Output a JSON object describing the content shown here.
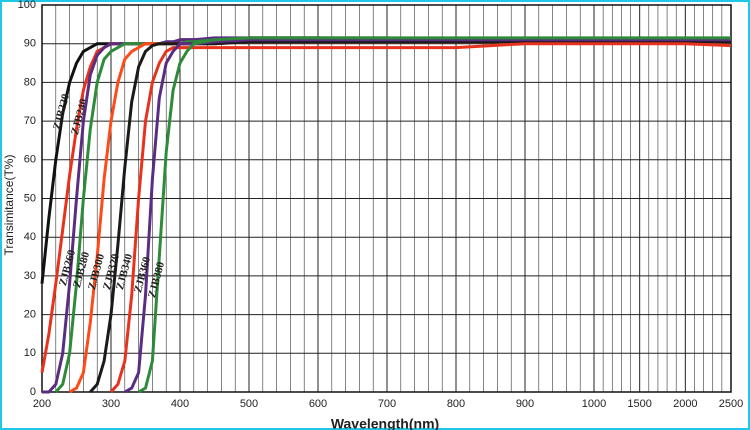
{
  "chart_data": {
    "type": "line",
    "x_label": "Wavelength(nm)",
    "y_label": "Transimitance(T%)",
    "x": [
      200,
      210,
      220,
      230,
      240,
      250,
      260,
      270,
      280,
      290,
      300,
      310,
      320,
      330,
      340,
      350,
      360,
      370,
      380,
      390,
      400,
      410,
      420,
      450,
      500,
      600,
      700,
      800,
      900,
      1000,
      1500,
      2000,
      2500
    ],
    "xticks": [
      200,
      300,
      400,
      500,
      600,
      700,
      800,
      900,
      1000,
      1500,
      2000,
      2500
    ],
    "xlim": [
      200,
      2500
    ],
    "ylim": [
      0,
      100
    ],
    "yticks": [
      0,
      10,
      20,
      30,
      40,
      50,
      60,
      70,
      80,
      90,
      100
    ],
    "grid": true,
    "series": [
      {
        "name": "ZJB220",
        "color": "#111111",
        "values": [
          28,
          45,
          60,
          72,
          80,
          85,
          88,
          89,
          90,
          90,
          90,
          90,
          90,
          90,
          90,
          90,
          90,
          90,
          90,
          90,
          91,
          91,
          91,
          91,
          91.5,
          91.5,
          91,
          91,
          91,
          91,
          91,
          91,
          91
        ]
      },
      {
        "name": "ZJB240",
        "color": "#e8321e",
        "values": [
          5,
          15,
          28,
          42,
          56,
          68,
          78,
          84,
          88,
          89,
          90,
          90,
          90,
          90,
          90,
          90,
          90,
          90,
          90,
          90,
          90,
          90,
          90,
          90.5,
          91,
          91,
          91,
          91,
          91,
          91,
          91,
          91,
          90.5
        ]
      },
      {
        "name": "ZJB260",
        "color": "#5a2d82",
        "values": [
          0,
          0,
          2,
          10,
          28,
          50,
          70,
          82,
          87,
          89,
          90,
          90,
          90,
          90,
          90,
          90,
          90,
          90,
          90.5,
          90.5,
          91,
          91,
          91,
          91.5,
          91.5,
          91.5,
          91.5,
          91,
          91,
          91,
          91.5,
          91,
          91
        ]
      },
      {
        "name": "ZJB280",
        "color": "#2e8b3a",
        "values": [
          null,
          null,
          0,
          2,
          10,
          28,
          50,
          68,
          80,
          86,
          88,
          89,
          90,
          90,
          90,
          90,
          90,
          90,
          90,
          90,
          90,
          90.5,
          90.5,
          91,
          91,
          91,
          91,
          91,
          91,
          91,
          91,
          91,
          91
        ]
      },
      {
        "name": "ZJB300",
        "color": "#ff4a1a",
        "values": [
          null,
          null,
          null,
          null,
          0,
          1,
          5,
          18,
          35,
          55,
          70,
          80,
          86,
          88,
          89,
          90,
          90,
          90,
          90,
          90,
          90,
          90,
          90,
          90,
          90.5,
          90.5,
          90.5,
          90.5,
          90.5,
          90.5,
          91,
          90.5,
          90.5
        ]
      },
      {
        "name": "ZJB320",
        "color": "#1a1a1a",
        "values": [
          null,
          null,
          null,
          null,
          null,
          null,
          null,
          0,
          2,
          8,
          20,
          38,
          58,
          75,
          84,
          88,
          89.5,
          90,
          90,
          90,
          90,
          90,
          90,
          90,
          90.5,
          90.5,
          90.5,
          90.5,
          90.5,
          90.5,
          90.5,
          90.5,
          90.5
        ]
      },
      {
        "name": "ZJB340",
        "color": "#e8321e",
        "values": [
          null,
          null,
          null,
          null,
          null,
          null,
          null,
          null,
          null,
          null,
          0,
          2,
          8,
          25,
          50,
          70,
          80,
          85,
          88,
          89,
          89,
          89,
          89,
          89,
          89,
          89,
          89,
          89,
          90,
          90,
          90,
          90,
          89.5
        ]
      },
      {
        "name": "ZJB360",
        "color": "#5a2d82",
        "values": [
          null,
          null,
          null,
          null,
          null,
          null,
          null,
          null,
          null,
          null,
          null,
          null,
          0,
          1,
          5,
          25,
          55,
          76,
          85,
          88,
          90,
          90,
          90,
          90.5,
          91,
          91,
          91,
          91,
          91,
          91,
          91,
          91,
          91
        ]
      },
      {
        "name": "ZJB380",
        "color": "#2e8b3a",
        "values": [
          null,
          null,
          null,
          null,
          null,
          null,
          null,
          null,
          null,
          null,
          null,
          null,
          null,
          null,
          0,
          1,
          8,
          35,
          62,
          78,
          85,
          88,
          90,
          91,
          91.5,
          91.5,
          91.5,
          91.5,
          91.5,
          91.5,
          91.5,
          91.5,
          91.5
        ]
      }
    ]
  }
}
